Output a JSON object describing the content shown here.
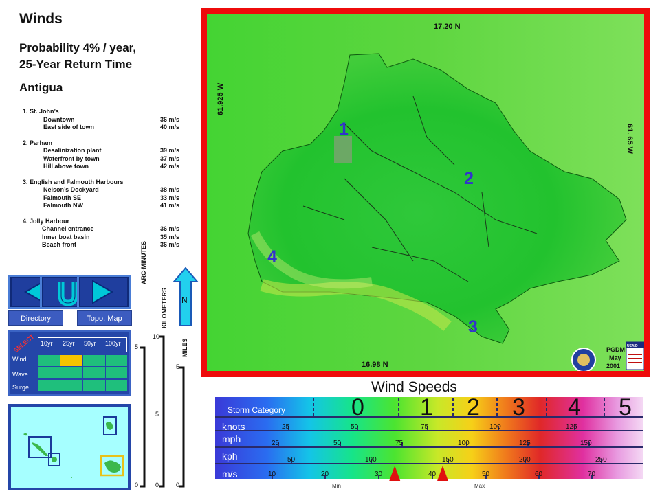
{
  "header": {
    "title": "Winds",
    "subtitle_line1": "Probability 4% / year,",
    "subtitle_line2": "25-Year Return Time",
    "island": "Antigua"
  },
  "sites": [
    {
      "heading": "1. St. John’s",
      "rows": [
        {
          "name": "Downtown",
          "value": "36 m/s"
        },
        {
          "name": "East side of town",
          "value": "40 m/s"
        }
      ]
    },
    {
      "heading": "2. Parham",
      "rows": [
        {
          "name": "Desalinization plant",
          "value": "39 m/s"
        },
        {
          "name": "Waterfront by town",
          "value": "37 m/s"
        },
        {
          "name": "Hill above town",
          "value": "42 m/s"
        }
      ]
    },
    {
      "heading": "3. English and Falmouth Harbours",
      "rows": [
        {
          "name": "Nelson’s Dockyard",
          "value": "38 m/s"
        },
        {
          "name": "Falmouth SE",
          "value": "33 m/s"
        },
        {
          "name": "Falmouth NW",
          "value": "41 m/s"
        }
      ]
    },
    {
      "heading": "4. Jolly Harbour",
      "rows": [
        {
          "name": "Channel entrance",
          "value": "36 m/s"
        },
        {
          "name": "Inner boat basin",
          "value": "35 m/s"
        },
        {
          "name": "Beach front",
          "value": "36 m/s"
        }
      ]
    }
  ],
  "nav": {
    "directory_label": "Directory",
    "topo_label": "Topo. Map",
    "north_label": "N"
  },
  "select_panel": {
    "select_label": "SELECT",
    "columns": [
      "10yr",
      "25yr",
      "50yr",
      "100yr"
    ],
    "rows": [
      "Wind",
      "Wave",
      "Surge"
    ],
    "selected_row": "Wind",
    "selected_column": "25yr"
  },
  "scale_bars": {
    "arc_label": "ARC-MINUTES",
    "arc_ticks": [
      "5",
      "0"
    ],
    "km_label": "KILOMETERS",
    "km_ticks": [
      "10",
      "5",
      "0"
    ],
    "miles_label": "MILES",
    "miles_ticks": [
      "5",
      "0"
    ]
  },
  "map": {
    "lat_top": "17.20 N",
    "lat_bottom": "16.98 N",
    "lon_left": "61.925 W",
    "lon_right": "61. 65 W",
    "markers": [
      "1",
      "2",
      "3",
      "4"
    ],
    "credit_org": "PGDM",
    "credit_month": "May",
    "credit_year": "2001",
    "usaid_label": "USAID"
  },
  "legend": {
    "title": "Wind Speeds",
    "storm_category_label": "Storm Category",
    "categories": [
      "0",
      "1",
      "2",
      "3",
      "4",
      "5"
    ],
    "knots_label": "knots",
    "knots_ticks": [
      "25",
      "50",
      "75",
      "100",
      "125"
    ],
    "mph_label": "mph",
    "mph_ticks": [
      "25",
      "50",
      "75",
      "100",
      "125",
      "150"
    ],
    "kph_label": "kph",
    "kph_ticks": [
      "50",
      "100",
      "150",
      "200",
      "250"
    ],
    "ms_label": "m/s",
    "ms_ticks": [
      "10",
      "20",
      "30",
      "40",
      "50",
      "60",
      "70"
    ],
    "min_label": "Min",
    "max_label": "Max",
    "min_value_ms": 33,
    "max_value_ms": 42
  },
  "colors": {
    "map_frame": "#ee0b0b",
    "land_green": "#3bd63b",
    "sea_green": "#7ee05a",
    "panel_blue": "#2446a8",
    "marker_blue": "#3333cc",
    "min_max_marker": "#e01010"
  }
}
